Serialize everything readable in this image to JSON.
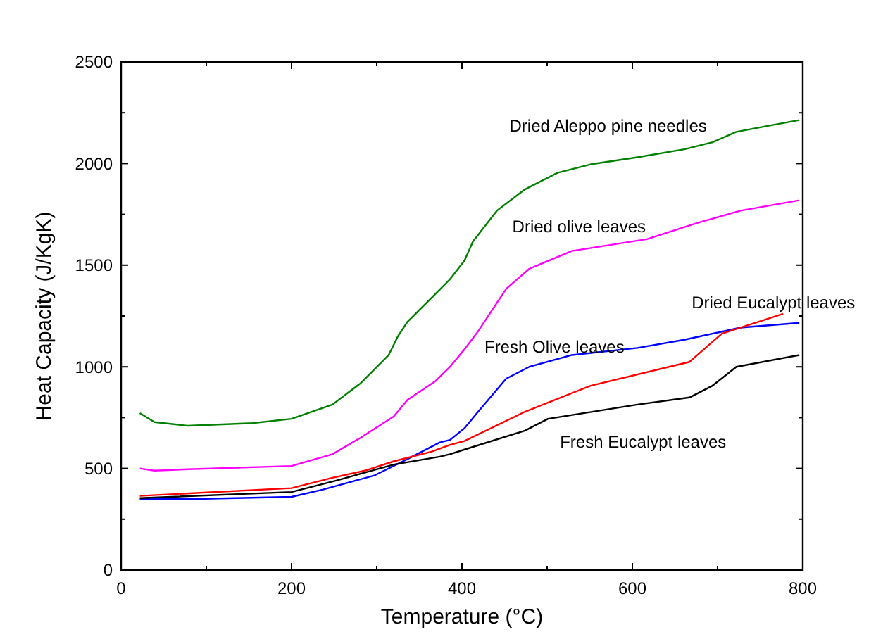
{
  "chart_data": {
    "type": "line",
    "xlabel": "Temperature (°C)",
    "ylabel": "Heat Capacity (J/KgK)",
    "xlim": [
      0,
      800
    ],
    "xticks": [
      0,
      {
        "value": 100,
        "label": null
      },
      200,
      {
        "value": 300,
        "label": null
      },
      400,
      {
        "value": 500,
        "label": null
      },
      600,
      {
        "value": 700,
        "label": null
      },
      800
    ],
    "ylim": [
      0,
      2500
    ],
    "yticks": [
      0,
      {
        "value": 250,
        "label": null
      },
      500,
      {
        "value": 750,
        "label": null
      },
      1000,
      {
        "value": 1250,
        "label": null
      },
      1500,
      {
        "value": 1750,
        "label": null
      },
      2000,
      {
        "value": 2250,
        "label": null
      },
      2500
    ],
    "grid": false,
    "marker": "none",
    "line_style": "solid",
    "series": [
      {
        "name": "Dried Aleppo pine needles",
        "color": "#008000",
        "x": [
          22,
          39,
          78,
          154,
          200,
          248,
          281,
          314,
          325,
          336,
          364,
          386,
          403,
          413,
          441,
          474,
          512,
          551,
          606,
          661,
          694,
          722,
          760,
          796
        ],
        "values": [
          772,
          728,
          710,
          723,
          744,
          814,
          919,
          1058,
          1151,
          1221,
          1338,
          1431,
          1523,
          1617,
          1768,
          1873,
          1954,
          1996,
          2031,
          2070,
          2105,
          2156,
          2186,
          2214
        ]
      },
      {
        "name": "Dried olive leaves",
        "color": "#ff00ff",
        "x": [
          22,
          39,
          78,
          200,
          248,
          281,
          320,
          336,
          369,
          386,
          403,
          419,
          452,
          479,
          529,
          617,
          678,
          727,
          796
        ],
        "values": [
          500,
          489,
          496,
          512,
          570,
          651,
          756,
          837,
          930,
          1000,
          1086,
          1175,
          1384,
          1482,
          1570,
          1628,
          1710,
          1768,
          1819
        ]
      },
      {
        "name": "Fresh Olive leaves",
        "color": "#0000ff",
        "x": [
          22,
          78,
          200,
          237,
          297,
          336,
          374,
          386,
          403,
          419,
          452,
          479,
          529,
          606,
          661,
          727,
          796
        ],
        "values": [
          349,
          349,
          360,
          396,
          465,
          546,
          628,
          640,
          698,
          779,
          942,
          1000,
          1058,
          1093,
          1133,
          1193,
          1216
        ]
      },
      {
        "name": "Dried Eucalypt leaves",
        "color": "#ff0000",
        "x": [
          22,
          200,
          248,
          286,
          320,
          364,
          386,
          403,
          474,
          551,
          667,
          705,
          777
        ],
        "values": [
          365,
          403,
          454,
          489,
          535,
          582,
          616,
          635,
          779,
          907,
          1024,
          1163,
          1261
        ]
      },
      {
        "name": "Fresh Eucalypt leaves",
        "color": "#000000",
        "x": [
          22,
          200,
          254,
          320,
          374,
          386,
          403,
          474,
          501,
          606,
          667,
          694,
          722,
          796
        ],
        "values": [
          354,
          384,
          442,
          519,
          558,
          570,
          593,
          686,
          744,
          814,
          849,
          907,
          1000,
          1058
        ]
      }
    ]
  }
}
